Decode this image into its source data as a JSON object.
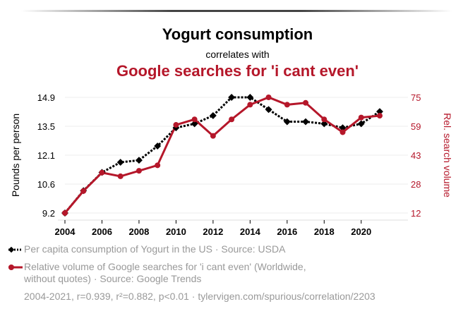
{
  "header": {
    "title": "Yogurt consumption",
    "subtitle": "correlates with",
    "title2": "Google searches for 'i cant even'"
  },
  "legend": {
    "series1": "Per capita consumption of Yogurt in the US · Source: USDA",
    "series2_line1": "Relative volume of Google searches for 'i cant even' (Worldwide,",
    "series2_line2": "without quotes) · Source: Google Trends"
  },
  "footer": {
    "stats": "2004-2021, r=0.939, r²=0.882, p<0.01 · tylervigen.com/spurious/correlation/2203"
  },
  "colors": {
    "series1": "#000000",
    "series2": "#b5172a",
    "right_axis": "#b5172a",
    "legend_text": "#999999"
  },
  "chart_data": {
    "type": "line",
    "x": [
      2004,
      2005,
      2006,
      2007,
      2008,
      2009,
      2010,
      2011,
      2012,
      2013,
      2014,
      2015,
      2016,
      2017,
      2018,
      2019,
      2020,
      2021
    ],
    "xticks": [
      2004,
      2006,
      2008,
      2010,
      2012,
      2014,
      2016,
      2018,
      2020
    ],
    "xlim": [
      2004,
      2021
    ],
    "y_left": {
      "label": "Pounds per person",
      "ticks": [
        "9.2",
        "10.6",
        "12.1",
        "13.5",
        "14.9"
      ],
      "lim": [
        9.2,
        14.9
      ]
    },
    "y_right": {
      "label": "Rel. search volume",
      "ticks": [
        "12",
        "28",
        "43",
        "59",
        "75"
      ],
      "lim": [
        12,
        75
      ]
    },
    "series": [
      {
        "name": "Per capita consumption of Yogurt in the US",
        "axis": "left",
        "style": "dotted",
        "marker": "diamond",
        "values": [
          9.2,
          10.3,
          11.2,
          11.7,
          11.8,
          12.5,
          13.4,
          13.6,
          14.0,
          14.9,
          14.9,
          14.3,
          13.7,
          13.7,
          13.6,
          13.4,
          13.6,
          14.2
        ]
      },
      {
        "name": "Relative volume of Google searches for 'i cant even'",
        "axis": "right",
        "style": "solid",
        "marker": "circle",
        "values": [
          12,
          24,
          34,
          32,
          35,
          38,
          60,
          63,
          54,
          63,
          71,
          75,
          71,
          72,
          63,
          56,
          64,
          65
        ]
      }
    ],
    "grid": true
  }
}
